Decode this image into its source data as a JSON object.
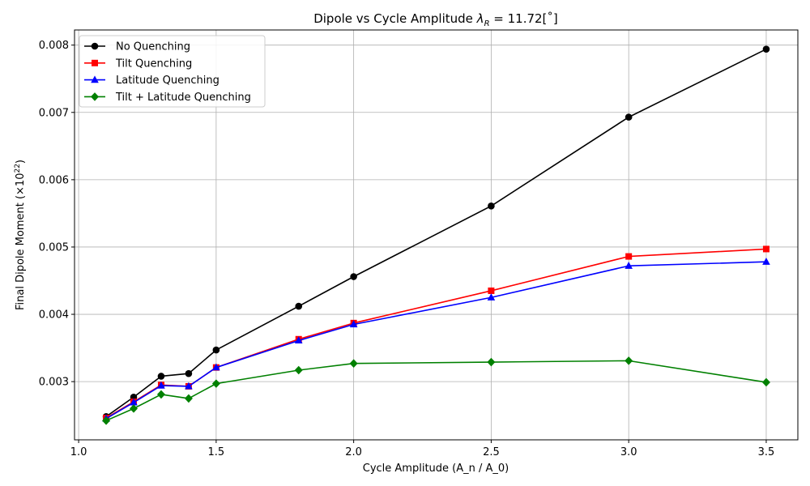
{
  "chart_data": {
    "type": "line",
    "title": "Dipole vs Cycle Amplitude",
    "title_lambda": "λ",
    "title_sub": "R",
    "title_value": " = 11.72[˚]",
    "xlabel": "Cycle Amplitude (A_n / A_0)",
    "ylabel": "Final Dipole Moment (×10",
    "ylabel_exp": "22",
    "ylabel_close": ")",
    "xlim": [
      0.985,
      3.615
    ],
    "ylim": [
      0.002135,
      0.008225
    ],
    "xticks": [
      1.0,
      1.5,
      2.0,
      2.5,
      3.0,
      3.5
    ],
    "xtick_labels": [
      "1.0",
      "1.5",
      "2.0",
      "2.5",
      "3.0",
      "3.5"
    ],
    "yticks": [
      0.003,
      0.004,
      0.005,
      0.006,
      0.007,
      0.008
    ],
    "ytick_labels": [
      "0.003",
      "0.004",
      "0.005",
      "0.006",
      "0.007",
      "0.008"
    ],
    "grid": true,
    "legend": "top-left",
    "x": [
      1.1,
      1.2,
      1.3,
      1.4,
      1.5,
      1.8,
      2.0,
      2.5,
      3.0,
      3.5
    ],
    "series": [
      {
        "name": "No Quenching",
        "color": "#000000",
        "marker": "circle",
        "values": [
          0.00248,
          0.00277,
          0.00308,
          0.00312,
          0.00347,
          0.00412,
          0.00456,
          0.00561,
          0.00693,
          0.00794
        ]
      },
      {
        "name": "Tilt Quenching",
        "color": "#ff0000",
        "marker": "square",
        "values": [
          0.00246,
          0.0027,
          0.00295,
          0.00293,
          0.00321,
          0.00363,
          0.00387,
          0.00435,
          0.00486,
          0.00497
        ]
      },
      {
        "name": "Latitude Quenching",
        "color": "#0000ff",
        "marker": "triangle",
        "values": [
          0.00245,
          0.00269,
          0.00294,
          0.00293,
          0.00321,
          0.00361,
          0.00385,
          0.00425,
          0.00472,
          0.00478
        ]
      },
      {
        "name": "Tilt + Latitude Quenching",
        "color": "#008000",
        "marker": "diamond",
        "values": [
          0.00242,
          0.0026,
          0.00281,
          0.00275,
          0.00297,
          0.00317,
          0.00327,
          0.00329,
          0.00331,
          0.00299
        ]
      }
    ]
  }
}
